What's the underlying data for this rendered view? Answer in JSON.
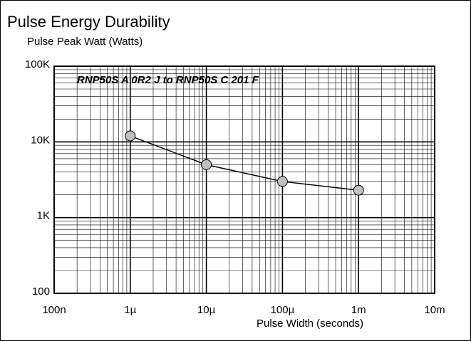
{
  "chart_data": {
    "type": "line",
    "title": "Pulse Energy Durability",
    "y_label": "Pulse Peak Watt (Watts)",
    "x_label": "Pulse Width (seconds)",
    "annotation": "RNP50S A 0R2 J to RNP50S C 201 F",
    "x": [
      1e-06,
      1e-05,
      0.0001,
      0.001
    ],
    "series": [
      {
        "name": "RNP50S",
        "color": "#000000",
        "marker_color": "#c0c0c0",
        "values": [
          12000,
          5000,
          3000,
          2300
        ]
      }
    ],
    "xscale": "log",
    "yscale": "log",
    "xlim": [
      1e-07,
      0.01
    ],
    "xticks": [
      {
        "value": 1e-07,
        "label": "100n"
      },
      {
        "value": 1e-06,
        "label": "1µ"
      },
      {
        "value": 1e-05,
        "label": "10µ"
      },
      {
        "value": 0.0001,
        "label": "100µ"
      },
      {
        "value": 0.001,
        "label": "1m"
      },
      {
        "value": 0.01,
        "label": "10m"
      }
    ],
    "ylim": [
      100,
      100000
    ],
    "yticks": [
      100,
      {
        "value": 1000,
        "label": "1K"
      },
      {
        "value": 10000,
        "label": "10K"
      },
      {
        "value": 100000,
        "label": "100K"
      }
    ],
    "grid": true
  }
}
